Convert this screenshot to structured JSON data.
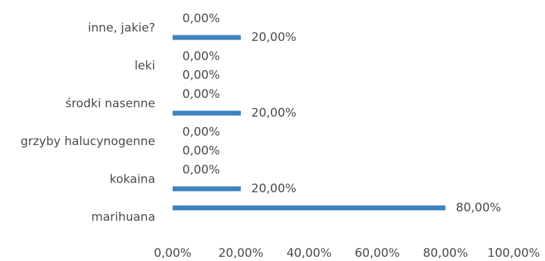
{
  "chart_data": {
    "type": "bar",
    "orientation": "horizontal",
    "categories": [
      "inne, jakie?",
      "leki",
      "środki nasenne",
      "grzyby halucynogenne",
      "kokaina",
      "marihuana"
    ],
    "series": [
      {
        "values": [
          0,
          0,
          0,
          0,
          0,
          80
        ],
        "value_labels": [
          "0,00%",
          "0,00%",
          "0,00%",
          "0,00%",
          "0,00%",
          "80,00%"
        ]
      },
      {
        "values": [
          20,
          0,
          20,
          0,
          20,
          null
        ],
        "value_labels": [
          "20,00%",
          "0,00%",
          "20,00%",
          "0,00%",
          "20,00%",
          null
        ]
      }
    ],
    "xlim": [
      0,
      100
    ],
    "x_ticks": [
      0,
      20,
      40,
      60,
      80,
      100
    ],
    "x_tick_labels": [
      "0,00%",
      "20,00%",
      "40,00%",
      "60,00%",
      "80,00%",
      "100,00%"
    ],
    "bar_color": "#3f83c2",
    "grid": false,
    "title": "",
    "xlabel": "",
    "ylabel": ""
  }
}
